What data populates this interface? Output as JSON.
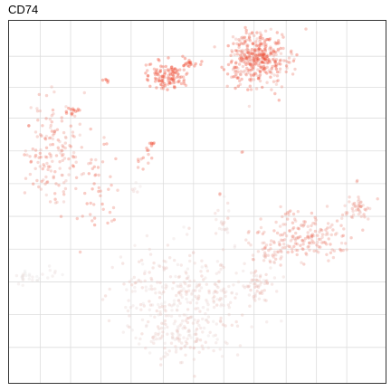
{
  "chart_data": {
    "type": "scatter",
    "title": "CD74",
    "subtitle": "",
    "xlabel": "",
    "ylabel": "",
    "grid": true,
    "legend": "none",
    "point_color_low": "#e6e6e6",
    "point_color_high": "#f03b20",
    "panel_border_color": "#333333",
    "grid_color": "#dddddd",
    "point_size": 1.7,
    "point_opacity": 0.35,
    "xlim": [
      0,
      100
    ],
    "ylim": [
      0,
      100
    ],
    "x_gridlines": [
      8.5,
      16.5,
      24.5,
      32.5,
      41,
      49,
      57,
      65,
      73.5,
      81.5,
      89.5
    ],
    "y_gridlines": [
      10,
      18.5,
      27,
      36,
      45,
      54,
      63,
      72,
      81,
      90
    ],
    "series": [
      {
        "cx": 46,
        "cy": 76,
        "sx": 9,
        "sy": 7,
        "n": 340,
        "expr": [
          0.05,
          0.3
        ]
      },
      {
        "cx": 45,
        "cy": 88,
        "sx": 5,
        "sy": 3,
        "n": 90,
        "expr": [
          0.05,
          0.25
        ]
      },
      {
        "cx": 66,
        "cy": 73,
        "sx": 3,
        "sy": 2,
        "n": 45,
        "expr": [
          0.1,
          0.35
        ]
      },
      {
        "cx": 78,
        "cy": 59,
        "sx": 6,
        "sy": 3,
        "n": 170,
        "expr": [
          0.35,
          0.7
        ]
      },
      {
        "cx": 70,
        "cy": 64,
        "sx": 3,
        "sy": 2,
        "n": 50,
        "expr": [
          0.25,
          0.5
        ]
      },
      {
        "cx": 92,
        "cy": 52,
        "sx": 2,
        "sy": 1.3,
        "n": 45,
        "expr": [
          0.3,
          0.6
        ]
      },
      {
        "cx": 57,
        "cy": 57,
        "sx": 1.3,
        "sy": 2.5,
        "n": 18,
        "expr": [
          0.05,
          0.25
        ]
      },
      {
        "cx": 6,
        "cy": 71,
        "sx": 2.5,
        "sy": 1.2,
        "n": 25,
        "expr": [
          0.0,
          0.1
        ]
      },
      {
        "cx": 12,
        "cy": 69,
        "sx": 1,
        "sy": 1,
        "n": 6,
        "expr": [
          0.0,
          0.1
        ]
      },
      {
        "cx": 12,
        "cy": 37,
        "sx": 4.5,
        "sy": 7,
        "n": 160,
        "expr": [
          0.3,
          0.75
        ]
      },
      {
        "cx": 16,
        "cy": 25,
        "sx": 1,
        "sy": 0.8,
        "n": 14,
        "expr": [
          0.8,
          1.0
        ]
      },
      {
        "cx": 24,
        "cy": 46,
        "sx": 2.5,
        "sy": 5,
        "n": 35,
        "expr": [
          0.5,
          0.85
        ]
      },
      {
        "cx": 36,
        "cy": 39,
        "sx": 1,
        "sy": 1.5,
        "n": 12,
        "expr": [
          0.55,
          0.9
        ]
      },
      {
        "cx": 34,
        "cy": 46,
        "sx": 0.6,
        "sy": 0.8,
        "n": 6,
        "expr": [
          0.05,
          0.2
        ]
      },
      {
        "cx": 38,
        "cy": 34,
        "sx": 0.4,
        "sy": 0.4,
        "n": 6,
        "expr": [
          0.85,
          1.0
        ]
      },
      {
        "cx": 26,
        "cy": 34,
        "sx": 0.3,
        "sy": 0.3,
        "n": 2,
        "expr": [
          0.6,
          0.8
        ]
      },
      {
        "cx": 23,
        "cy": 43,
        "sx": 0.3,
        "sy": 0.3,
        "n": 2,
        "expr": [
          0.6,
          0.8
        ]
      },
      {
        "cx": 26,
        "cy": 16.5,
        "sx": 0.5,
        "sy": 0.4,
        "n": 5,
        "expr": [
          0.85,
          1.0
        ]
      },
      {
        "cx": 42,
        "cy": 15.5,
        "sx": 2.6,
        "sy": 1.8,
        "n": 120,
        "expr": [
          0.65,
          1.0
        ]
      },
      {
        "cx": 48,
        "cy": 12,
        "sx": 1.5,
        "sy": 0.8,
        "n": 20,
        "expr": [
          0.8,
          1.0
        ]
      },
      {
        "cx": 66,
        "cy": 10.5,
        "sx": 4,
        "sy": 3.5,
        "n": 400,
        "expr": [
          0.35,
          1.0
        ]
      },
      {
        "cx": 62,
        "cy": 36,
        "sx": 0.3,
        "sy": 0.3,
        "n": 2,
        "expr": [
          0.5,
          0.7
        ]
      },
      {
        "cx": 56,
        "cy": 48,
        "sx": 0.3,
        "sy": 0.3,
        "n": 2,
        "expr": [
          0.5,
          0.7
        ]
      },
      {
        "cx": 92,
        "cy": 44,
        "sx": 0.3,
        "sy": 0.3,
        "n": 2,
        "expr": [
          0.5,
          0.7
        ]
      }
    ]
  }
}
